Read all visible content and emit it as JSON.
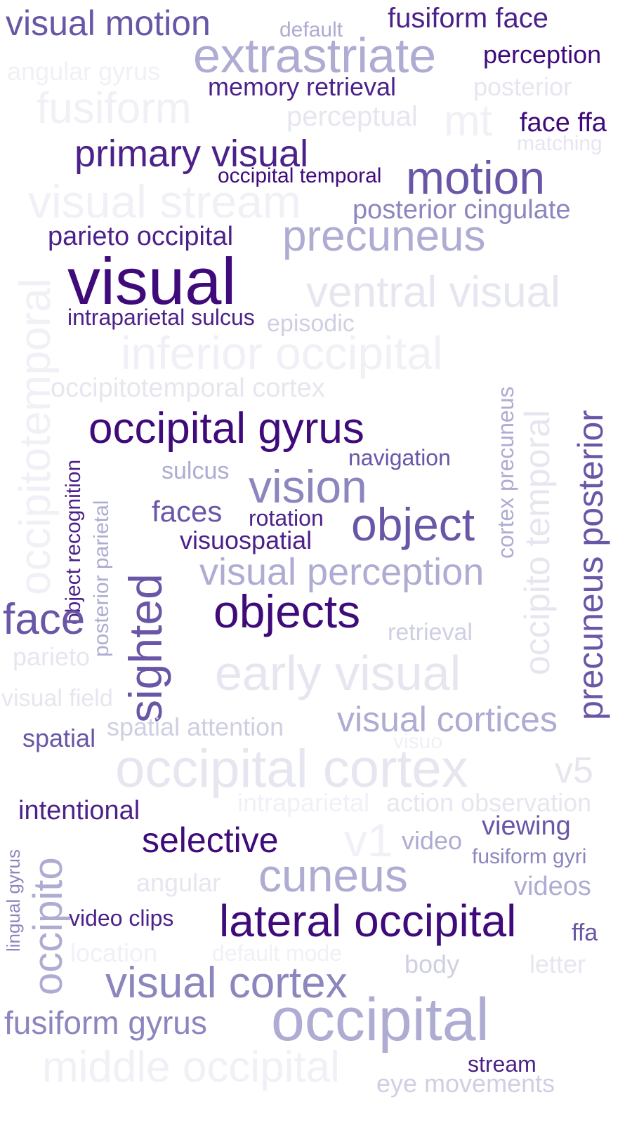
{
  "words": [
    "visual motion",
    "default",
    "fusiform face",
    "extrastriate",
    "perception",
    "angular gyrus",
    "memory retrieval",
    "posterior",
    "fusiform",
    "perceptual",
    "mt",
    "face ffa",
    "matching",
    "primary visual",
    "occipital temporal",
    "motion",
    "visual stream",
    "posterior cingulate",
    "parieto occipital",
    "precuneus",
    "visual",
    "ventral visual",
    "intraparietal sulcus",
    "episodic",
    "inferior occipital",
    "occipitotemporal",
    "occipitotemporal cortex",
    "cortex precuneus",
    "occipito temporal",
    "precuneus posterior",
    "object recognition",
    "occipital gyrus",
    "posterior parietal",
    "navigation",
    "sulcus",
    "vision",
    "faces",
    "rotation",
    "object",
    "sighted",
    "visuospatial",
    "visual perception",
    "face",
    "objects",
    "retrieval",
    "parieto",
    "early visual",
    "visual field",
    "visual cortices",
    "spatial",
    "spatial attention",
    "visuo",
    "occipital cortex",
    "v5",
    "intraparietal",
    "action observation",
    "intentional",
    "viewing",
    "lingual gyrus",
    "selective",
    "v1",
    "video",
    "fusiform gyri",
    "occipito",
    "angular",
    "cuneus",
    "videos",
    "video clips",
    "lateral occipital",
    "ffa",
    "location",
    "default mode",
    "body",
    "letter",
    "visual cortex",
    "fusiform gyrus",
    "occipital",
    "middle occipital",
    "stream",
    "eye movements"
  ]
}
